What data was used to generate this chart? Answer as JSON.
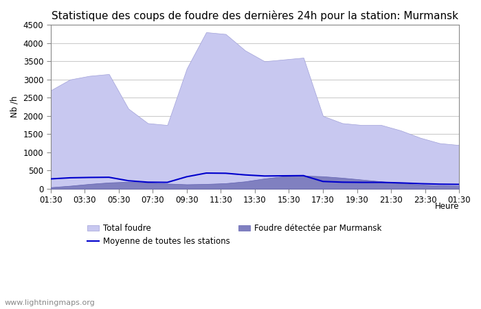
{
  "title": "Statistique des coups de foudre des dernières 24h pour la station: Murmansk",
  "ylabel": "Nb /h",
  "xlabel": "Heure",
  "x_labels": [
    "01:30",
    "03:30",
    "05:30",
    "07:30",
    "09:30",
    "11:30",
    "13:30",
    "15:30",
    "17:30",
    "19:30",
    "21:30",
    "23:30",
    "01:30"
  ],
  "ylim": [
    0,
    4500
  ],
  "yticks": [
    0,
    500,
    1000,
    1500,
    2000,
    2500,
    3000,
    3500,
    4000,
    4500
  ],
  "background_color": "#ffffff",
  "plot_bg_color": "#ffffff",
  "grid_color": "#cccccc",
  "total_foudre_color": "#c8c8f0",
  "total_foudre_edge": "#a0a0d8",
  "murmansk_color": "#8080c0",
  "murmansk_edge": "#6060b0",
  "moyenne_color": "#0000cc",
  "watermark": "www.lightningmaps.org",
  "total_foudre_values": [
    2700,
    3000,
    3100,
    3150,
    2200,
    1800,
    1750,
    3300,
    4300,
    4250,
    3800,
    3500,
    3550,
    3600,
    2000,
    1800,
    1750,
    1750,
    1600,
    1400,
    1250,
    1200
  ],
  "murmansk_values": [
    40,
    80,
    130,
    170,
    190,
    170,
    140,
    120,
    130,
    150,
    200,
    280,
    340,
    360,
    340,
    300,
    250,
    200,
    150,
    110,
    90,
    80
  ],
  "moyenne_values": [
    270,
    300,
    310,
    315,
    220,
    180,
    175,
    330,
    430,
    425,
    380,
    350,
    355,
    360,
    200,
    180,
    175,
    175,
    160,
    140,
    125,
    120
  ],
  "n_points": 22,
  "title_fontsize": 11,
  "tick_fontsize": 8.5,
  "legend_fontsize": 8.5,
  "watermark_fontsize": 8
}
